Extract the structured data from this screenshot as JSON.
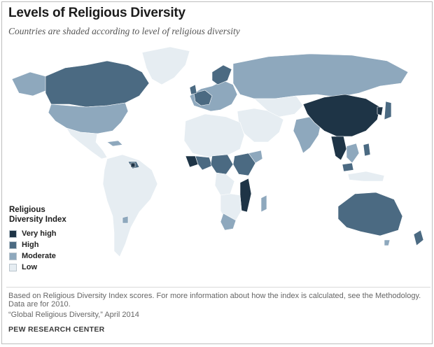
{
  "header": {
    "title": "Levels of Religious Diversity",
    "subtitle": "Countries are shaded according to level of religious diversity"
  },
  "legend": {
    "title_line1": "Religious",
    "title_line2": "Diversity Index",
    "items": [
      {
        "label": "Very high",
        "color": "#1e3446"
      },
      {
        "label": "High",
        "color": "#4b6a82"
      },
      {
        "label": "Moderate",
        "color": "#8ea8bd"
      },
      {
        "label": "Low",
        "color": "#e6edf2"
      }
    ]
  },
  "footer": {
    "note": "Based on Religious Diversity Index scores. For more information about how the index is calculated, see the Methodology. Data are for 2010.",
    "source": "“Global Religious Diversity,” April 2014",
    "brand": "PEW RESEARCH CENTER"
  }
}
